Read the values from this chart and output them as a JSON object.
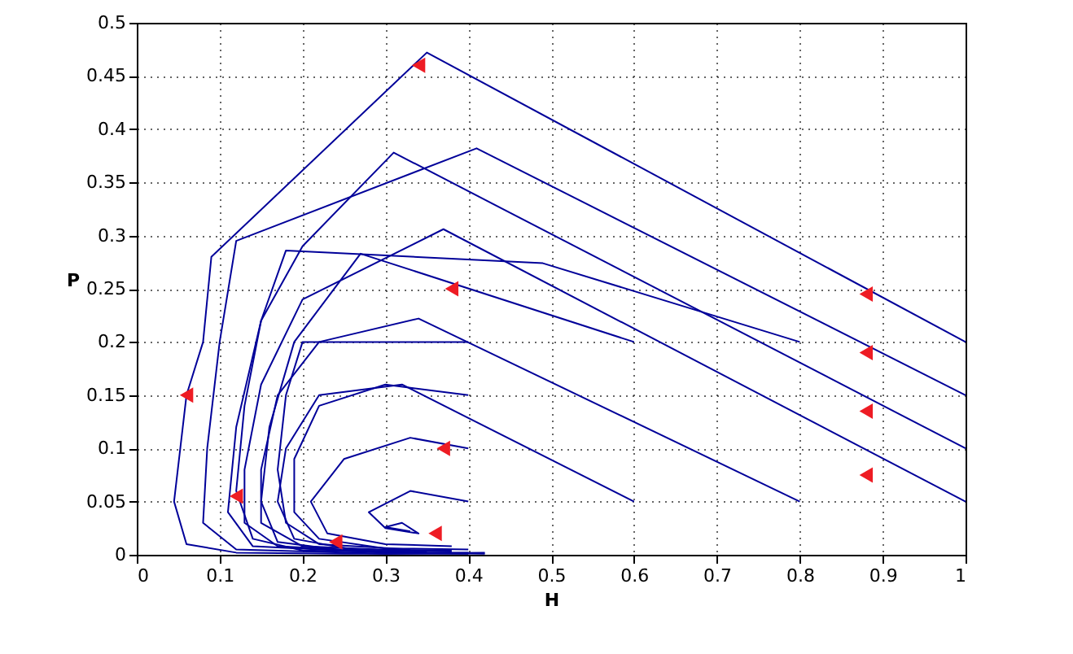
{
  "chart_data": {
    "type": "line",
    "xlabel": "H",
    "ylabel": "P",
    "xlim": [
      0,
      1
    ],
    "ylim": [
      0,
      0.5
    ],
    "xticks": [
      0,
      0.1,
      0.2,
      0.3,
      0.4,
      0.5,
      0.6,
      0.7,
      0.8,
      0.9,
      1
    ],
    "yticks": [
      0,
      0.05,
      0.1,
      0.15,
      0.2,
      0.25,
      0.3,
      0.35,
      0.4,
      0.45,
      0.5
    ],
    "grid": true,
    "line_style": "solid",
    "marker": "none",
    "series": [
      {
        "color": "#000099",
        "x": [
          1,
          0.35,
          0.09,
          0.08,
          0.06,
          0.045,
          0.06,
          0.12,
          0.25,
          0.4
        ],
        "values": [
          0.2,
          0.472,
          0.28,
          0.2,
          0.15,
          0.05,
          0.01,
          0.002,
          0.001,
          0.001
        ]
      },
      {
        "color": "#000099",
        "x": [
          1,
          0.41,
          0.12,
          0.1,
          0.085,
          0.08,
          0.12,
          0.3,
          0.42
        ],
        "values": [
          0.15,
          0.382,
          0.295,
          0.2,
          0.1,
          0.03,
          0.005,
          0.001,
          0.002
        ]
      },
      {
        "color": "#000099",
        "x": [
          1,
          0.31,
          0.2,
          0.15,
          0.12,
          0.11,
          0.14,
          0.3,
          0.42
        ],
        "values": [
          0.1,
          0.378,
          0.29,
          0.22,
          0.12,
          0.04,
          0.008,
          0.002,
          0.001
        ]
      },
      {
        "color": "#000099",
        "x": [
          1,
          0.37,
          0.2,
          0.15,
          0.13,
          0.13,
          0.17,
          0.32,
          0.4
        ],
        "values": [
          0.05,
          0.306,
          0.24,
          0.16,
          0.08,
          0.03,
          0.008,
          0.002,
          0.002
        ]
      },
      {
        "color": "#000099",
        "x": [
          0.8,
          0.49,
          0.18,
          0.15,
          0.13,
          0.12,
          0.14,
          0.2,
          0.35
        ],
        "values": [
          0.2,
          0.274,
          0.286,
          0.22,
          0.14,
          0.06,
          0.015,
          0.004,
          0.002
        ]
      },
      {
        "color": "#000099",
        "x": [
          0.8,
          0.34,
          0.22,
          0.17,
          0.15,
          0.15,
          0.2,
          0.35
        ],
        "values": [
          0.05,
          0.222,
          0.2,
          0.15,
          0.08,
          0.03,
          0.008,
          0.003
        ]
      },
      {
        "color": "#000099",
        "x": [
          0.6,
          0.27,
          0.19,
          0.16,
          0.15,
          0.17,
          0.25,
          0.38
        ],
        "values": [
          0.2,
          0.283,
          0.2,
          0.12,
          0.05,
          0.012,
          0.004,
          0.003
        ]
      },
      {
        "color": "#000099",
        "x": [
          0.6,
          0.32,
          0.22,
          0.18,
          0.17,
          0.19,
          0.26,
          0.38
        ],
        "values": [
          0.05,
          0.16,
          0.15,
          0.1,
          0.05,
          0.015,
          0.005,
          0.004
        ]
      },
      {
        "color": "#000099",
        "x": [
          0.4,
          0.2,
          0.18,
          0.17,
          0.18,
          0.22,
          0.33
        ],
        "values": [
          0.2,
          0.2,
          0.15,
          0.08,
          0.03,
          0.01,
          0.005
        ]
      },
      {
        "color": "#000099",
        "x": [
          0.4,
          0.3,
          0.22,
          0.19,
          0.19,
          0.22,
          0.3,
          0.4
        ],
        "values": [
          0.15,
          0.16,
          0.14,
          0.09,
          0.04,
          0.015,
          0.006,
          0.005
        ]
      },
      {
        "color": "#000099",
        "x": [
          0.4,
          0.33,
          0.25,
          0.21,
          0.23,
          0.3,
          0.38
        ],
        "values": [
          0.1,
          0.11,
          0.09,
          0.05,
          0.02,
          0.01,
          0.008
        ]
      },
      {
        "color": "#000099",
        "x": [
          0.4,
          0.33,
          0.28,
          0.3,
          0.34,
          0.32,
          0.3,
          0.33
        ],
        "values": [
          0.05,
          0.06,
          0.04,
          0.025,
          0.02,
          0.03,
          0.026,
          0.022
        ]
      },
      {
        "type": "scatter",
        "marker": "triangle",
        "color": "#ee1c24",
        "x": [
          0.34,
          0.38,
          0.37,
          0.36,
          0.24,
          0.06,
          0.12,
          0.88,
          0.88,
          0.88,
          0.88
        ],
        "values": [
          0.46,
          0.25,
          0.1,
          0.02,
          0.012,
          0.15,
          0.055,
          0.245,
          0.19,
          0.135,
          0.075
        ]
      }
    ]
  }
}
